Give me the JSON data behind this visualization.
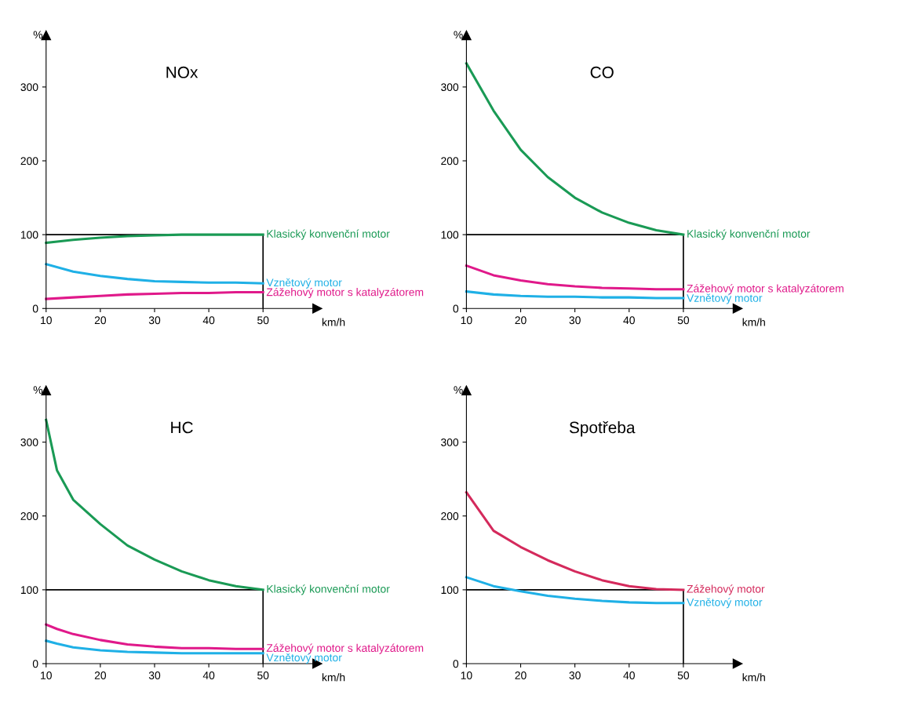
{
  "chart_data": [
    {
      "type": "line",
      "title": "NOx",
      "xlabel": "km/h",
      "ylabel": "%",
      "xlim": [
        10,
        60
      ],
      "ylim": [
        0,
        370
      ],
      "xticks": [
        10,
        20,
        30,
        40,
        50
      ],
      "yticks": [
        0,
        100,
        200,
        300
      ],
      "grid": false,
      "x": [
        10,
        15,
        20,
        25,
        30,
        35,
        40,
        45,
        50
      ],
      "series": [
        {
          "name": "Klasický konvenční motor",
          "color": "#1a9a55",
          "values": [
            89,
            93,
            96,
            98,
            99,
            100,
            100,
            100,
            100
          ]
        },
        {
          "name": "Vznětový motor",
          "color": "#1fb0e6",
          "values": [
            60,
            50,
            44,
            40,
            37,
            36,
            35,
            35,
            34
          ]
        },
        {
          "name": "Zážehový motor s katalyzátorem",
          "color": "#e0198a",
          "values": [
            13,
            15,
            17,
            19,
            20,
            21,
            21,
            22,
            22
          ]
        }
      ],
      "ref_lines": [
        {
          "axis": "y",
          "value": 100,
          "color": "#000000"
        },
        {
          "axis": "x",
          "value": 50,
          "color": "#000000"
        }
      ]
    },
    {
      "type": "line",
      "title": "CO",
      "xlabel": "km/h",
      "ylabel": "%",
      "xlim": [
        10,
        60
      ],
      "ylim": [
        0,
        370
      ],
      "xticks": [
        10,
        20,
        30,
        40,
        50
      ],
      "yticks": [
        0,
        100,
        200,
        300
      ],
      "grid": false,
      "x": [
        10,
        15,
        20,
        25,
        30,
        35,
        40,
        45,
        50
      ],
      "series": [
        {
          "name": "Klasický konvenční motor",
          "color": "#1a9a55",
          "values": [
            332,
            268,
            215,
            178,
            150,
            130,
            116,
            106,
            100
          ]
        },
        {
          "name": "Zážehový motor s katalyzátorem",
          "color": "#e0198a",
          "values": [
            58,
            45,
            38,
            33,
            30,
            28,
            27,
            26,
            26
          ]
        },
        {
          "name": "Vznětový motor",
          "color": "#1fb0e6",
          "values": [
            23,
            19,
            17,
            16,
            16,
            15,
            15,
            14,
            14
          ]
        }
      ],
      "ref_lines": [
        {
          "axis": "y",
          "value": 100,
          "color": "#000000"
        },
        {
          "axis": "x",
          "value": 50,
          "color": "#000000"
        }
      ]
    },
    {
      "type": "line",
      "title": "HC",
      "xlabel": "km/h",
      "ylabel": "%",
      "xlim": [
        10,
        60
      ],
      "ylim": [
        0,
        370
      ],
      "xticks": [
        10,
        20,
        30,
        40,
        50
      ],
      "yticks": [
        0,
        100,
        200,
        300
      ],
      "grid": false,
      "x": [
        10,
        12,
        15,
        20,
        25,
        30,
        35,
        40,
        45,
        50
      ],
      "series": [
        {
          "name": "Klasický konvenční motor",
          "color": "#1a9a55",
          "values": [
            330,
            262,
            222,
            189,
            160,
            141,
            125,
            113,
            105,
            100
          ]
        },
        {
          "name": "Zážehový motor s katalyzátorem",
          "color": "#e0198a",
          "values": [
            53,
            47,
            40,
            32,
            26,
            23,
            21,
            21,
            20,
            20
          ]
        },
        {
          "name": "Vznětový motor",
          "color": "#1fb0e6",
          "values": [
            31,
            27,
            22,
            18,
            16,
            15,
            14,
            14,
            14,
            14
          ]
        }
      ],
      "ref_lines": [
        {
          "axis": "y",
          "value": 100,
          "color": "#000000"
        },
        {
          "axis": "x",
          "value": 50,
          "color": "#000000"
        }
      ]
    },
    {
      "type": "line",
      "title": "Spotřeba",
      "xlabel": "km/h",
      "ylabel": "%",
      "xlim": [
        10,
        60
      ],
      "ylim": [
        0,
        370
      ],
      "xticks": [
        10,
        20,
        30,
        40,
        50
      ],
      "yticks": [
        0,
        100,
        200,
        300
      ],
      "grid": false,
      "x": [
        10,
        15,
        20,
        25,
        30,
        35,
        40,
        45,
        50
      ],
      "series": [
        {
          "name": "Zážehový motor",
          "color": "#d42a5c",
          "values": [
            232,
            180,
            158,
            140,
            125,
            113,
            105,
            101,
            100
          ]
        },
        {
          "name": "Vznětový motor",
          "color": "#1fb0e6",
          "values": [
            117,
            105,
            98,
            92,
            88,
            85,
            83,
            82,
            82
          ]
        }
      ],
      "ref_lines": [
        {
          "axis": "y",
          "value": 100,
          "color": "#000000"
        },
        {
          "axis": "x",
          "value": 50,
          "color": "#000000"
        }
      ]
    }
  ]
}
